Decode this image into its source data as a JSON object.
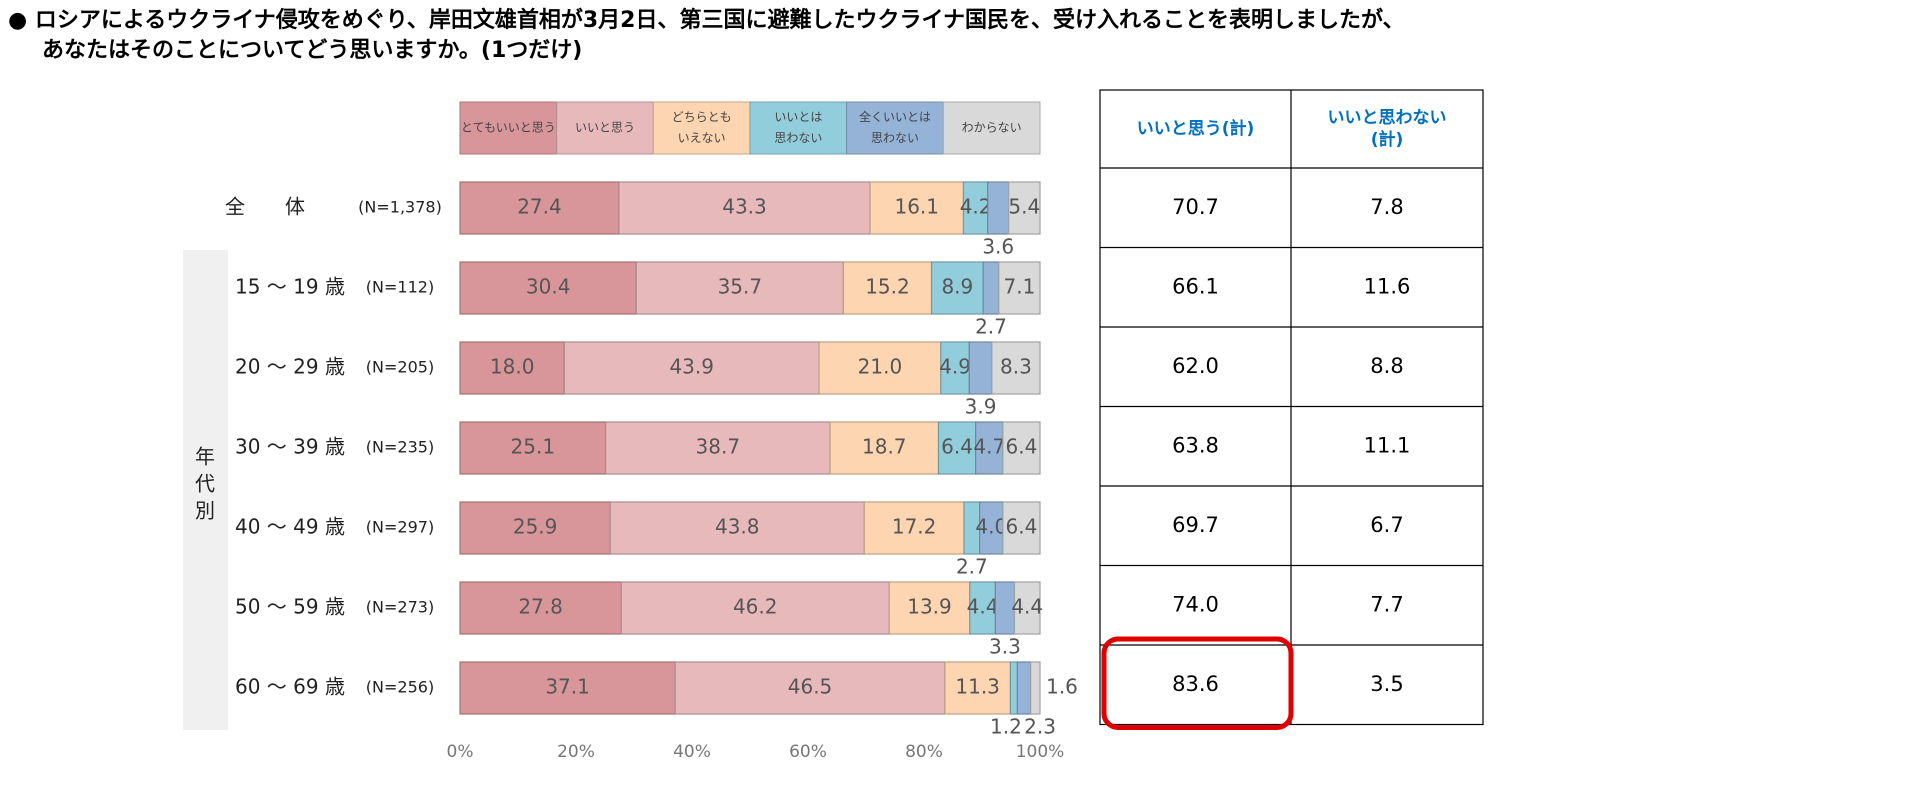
{
  "question": {
    "line1": "● ロシアによるウクライナ侵攻をめぐり、岸田文雄首相が3月2日、第三国に避難したウクライナ国民を、受け入れることを表明しましたが、",
    "line2": "あなたはそのことについてどう思いますか。(1つだけ)"
  },
  "colors": {
    "とてもいいと思う": "#d9969a",
    "いいと思う": "#e8b9bb",
    "どちらともいえない": "#fdd5b1",
    "いいとは思わない": "#92cddc",
    "全くいいとは思わない": "#95b3d7",
    "わからない": "#d9d9d9",
    "highlight": "#e00000",
    "table_header_text": "#0070c0"
  },
  "chart_data": {
    "type": "bar",
    "orientation": "horizontal",
    "stacked": true,
    "percent": true,
    "legend_position": "top",
    "xlim": [
      0,
      100
    ],
    "xticks": [
      "0%",
      "20%",
      "40%",
      "60%",
      "80%",
      "100%"
    ],
    "group_label": "年代別",
    "legend": [
      {
        "key": "とてもいいと思う",
        "lines": [
          "とてもいいと思う"
        ]
      },
      {
        "key": "いいと思う",
        "lines": [
          "いいと思う"
        ]
      },
      {
        "key": "どちらともいえない",
        "lines": [
          "どちらとも",
          "いえない"
        ]
      },
      {
        "key": "いいとは思わない",
        "lines": [
          "いいとは",
          "思わない"
        ]
      },
      {
        "key": "全くいいとは思わない",
        "lines": [
          "全くいいとは",
          "思わない"
        ]
      },
      {
        "key": "わからない",
        "lines": [
          "わからない"
        ]
      }
    ],
    "categories": [
      {
        "label": "全　　体",
        "n": "(N=1,378)",
        "values": [
          27.4,
          43.3,
          16.1,
          4.2,
          3.6,
          5.4
        ],
        "labels": [
          "27.4",
          "43.3",
          "16.1",
          "4.2",
          "3.6",
          "5.4"
        ]
      },
      {
        "label": "15 ～ 19 歳",
        "n": "(N=112)",
        "values": [
          30.4,
          35.7,
          15.2,
          8.9,
          2.7,
          7.1
        ],
        "labels": [
          "30.4",
          "35.7",
          "15.2",
          "8.9",
          "2.7",
          "7.1"
        ]
      },
      {
        "label": "20 ～ 29 歳",
        "n": "(N=205)",
        "values": [
          18.0,
          43.9,
          21.0,
          4.9,
          3.9,
          8.3
        ],
        "labels": [
          "18.0",
          "43.9",
          "21.0",
          "4.9",
          "3.9",
          "8.3"
        ]
      },
      {
        "label": "30 ～ 39 歳",
        "n": "(N=235)",
        "values": [
          25.1,
          38.7,
          18.7,
          6.4,
          4.7,
          6.4
        ],
        "labels": [
          "25.1",
          "38.7",
          "18.7",
          "6.4",
          "4.7",
          "6.4"
        ]
      },
      {
        "label": "40 ～ 49 歳",
        "n": "(N=297)",
        "values": [
          25.9,
          43.8,
          17.2,
          2.7,
          4.0,
          6.4
        ],
        "labels": [
          "25.9",
          "43.8",
          "17.2",
          "2.7",
          "4.0",
          "6.4"
        ]
      },
      {
        "label": "50 ～ 59 歳",
        "n": "(N=273)",
        "values": [
          27.8,
          46.2,
          13.9,
          4.4,
          3.3,
          4.4
        ],
        "labels": [
          "27.8",
          "46.2",
          "13.9",
          "4.4",
          "3.3",
          "4.4"
        ]
      },
      {
        "label": "60 ～ 69 歳",
        "n": "(N=256)",
        "values": [
          37.1,
          46.5,
          11.3,
          1.2,
          2.3,
          1.6
        ],
        "labels": [
          "37.1",
          "46.5",
          "11.3",
          "1.2",
          "2.3",
          "1.6"
        ]
      }
    ],
    "table": {
      "headers": [
        [
          "いいと思う(計)"
        ],
        [
          "いいと思わない",
          "(計)"
        ]
      ],
      "rows": [
        [
          "70.7",
          "7.8"
        ],
        [
          "66.1",
          "11.6"
        ],
        [
          "62.0",
          "8.8"
        ],
        [
          "63.8",
          "11.1"
        ],
        [
          "69.7",
          "6.7"
        ],
        [
          "74.0",
          "7.7"
        ],
        [
          "83.6",
          "3.5"
        ]
      ],
      "highlight": {
        "row": 6,
        "col": 0
      }
    }
  }
}
